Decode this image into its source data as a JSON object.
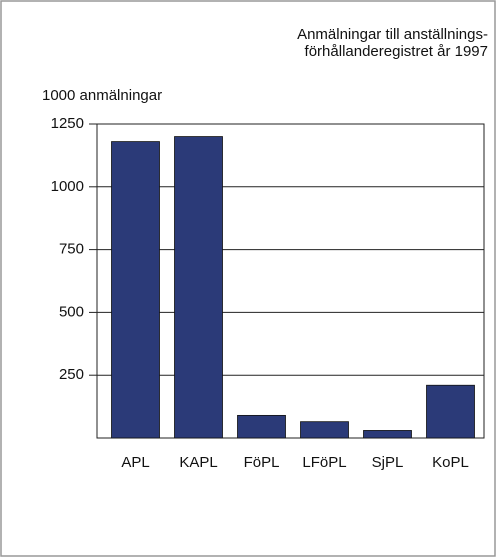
{
  "chart_data": {
    "type": "bar",
    "title": [
      "Anmälningar till anställnings-",
      "förhållanderegistret år 1997"
    ],
    "y_label": "1000 anmälningar",
    "categories": [
      "APL",
      "KAPL",
      "FöPL",
      "LFöPL",
      "SjPL",
      "KoPL"
    ],
    "values": [
      1180,
      1200,
      90,
      65,
      30,
      210
    ],
    "color": "#2b3a78",
    "ylim": [
      0,
      1250
    ],
    "yticks": [
      250,
      500,
      750,
      1000,
      1250
    ],
    "grid": true
  }
}
